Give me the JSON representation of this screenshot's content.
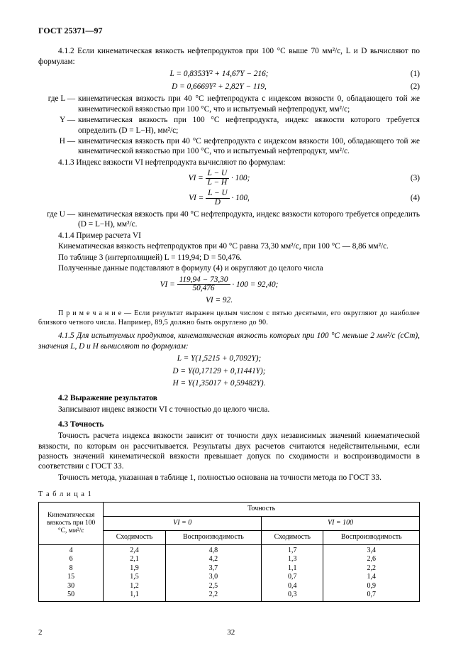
{
  "header": "ГОСТ 25371—97",
  "p412": "4.1.2 Если кинематическая вязкость нефтепродуктов при 100 °С выше 70 мм²/с, L и D вычисляют по формулам:",
  "eq1": "L = 0,8353Y² + 14,67Y − 216;",
  "eq1n": "(1)",
  "eq2": "D = 0,6669Y² + 2,82Y − 119,",
  "eq2n": "(2)",
  "defL_lab": "где L —",
  "defL": "кинематическая вязкость при 40 °С нефтепродукта с индексом вязкости 0, обладающего той же кинематической вязкостью при 100 °С, что и испытуемый нефтепродукт, мм²/с;",
  "defY_lab": "Y —",
  "defY": "кинематическая вязкость при 100 °С нефтепродукта, индекс вязкости которого требуется определить (D = L−H), мм²/с;",
  "defH_lab": "H —",
  "defH": "кинематическая вязкость при 40 °С нефтепродукта с индексом вязкости 100, обладающего той же кинематической вязкостью при 100 °С, что и испытуемый нефтепродукт, мм²/с.",
  "p413": "4.1.3 Индекс вязкости VI нефтепродукта вычисляют по формулам:",
  "eq3_top": "L − U",
  "eq3_bot": "L − H",
  "eq3_pre": "VI =",
  "eq3_post": " · 100;",
  "eq3n": "(3)",
  "eq4_top": "L − U",
  "eq4_bot": "D",
  "eq4_pre": "VI =",
  "eq4_post": " · 100,",
  "eq4n": "(4)",
  "defU_lab": "где U —",
  "defU": "кинематическая вязкость при 40 °С нефтепродукта, индекс вязкости которого требуется определить (D = L−H), мм²/с.",
  "p414a": "4.1.4 Пример расчета VI",
  "p414b": "Кинематическая вязкость нефтепродуктов при 40 °С равна 73,30 мм²/с, при 100 °С — 8,86 мм²/с.",
  "p414c": "По таблице 3 (интерполяцией) L = 119,94; D = 50,476.",
  "p414d": "Полученные данные подставляют в формулу (4) и округляют до целого числа",
  "eqex_pre": "VI =",
  "eqex_top": "119,94 − 73,30",
  "eqex_bot": "50,476",
  "eqex_post": " · 100 = 92,40;",
  "eqex2": "VI = 92.",
  "note": "П р и м е ч а н и е — Если результат выражен целым числом с пятью десятыми, его округляют до наиболее близкого четного числа. Например, 89,5 должно быть округлено до 90.",
  "p415": "4.1.5 Для испытуемых продуктов, кинематическая вязкость которых при 100 °С меньше 2 мм²/с (сСт), значения L, D и H вычисляют по формулам:",
  "eqL2": "L = Y(1,5215 + 0,7092Y);",
  "eqD2": "D = Y(0,17129 + 0,11441Y);",
  "eqH2": "H = Y(1,35017 + 0,59482Y).",
  "s42": "4.2 Выражение результатов",
  "p42": "Записывают индекс вязкости VI с точностью до целого числа.",
  "s43": "4.3 Точность",
  "p43a": "Точность расчета индекса вязкости зависит от точности двух независимых значений кинематической вязкости, по которым он рассчитывается. Результаты двух расчетов считаются недействительными, если разность значений кинематической вязкости превышает допуск по сходимости и воспроизводимости в соответствии с ГОСТ 33.",
  "p43b": "Точность метода, указанная в таблице 1, полностью основана на точности метода по ГОСТ 33.",
  "table_label": "Т а б л и ц а 1",
  "th_kin": "Кинематическая вязкость при 100 °С, мм²/с",
  "th_acc": "Точность",
  "th_vi0": "VI = 0",
  "th_vi100": "VI = 100",
  "th_sh": "Сходимость",
  "th_vo": "Воспроизводимость",
  "rows": [
    [
      "4",
      "2,4",
      "4,8",
      "1,7",
      "3,4"
    ],
    [
      "6",
      "2,1",
      "4,2",
      "1,3",
      "2,6"
    ],
    [
      "8",
      "1,9",
      "3,7",
      "1,1",
      "2,2"
    ],
    [
      "15",
      "1,5",
      "3,0",
      "0,7",
      "1,4"
    ],
    [
      "30",
      "1,2",
      "2,5",
      "0,4",
      "0,9"
    ],
    [
      "50",
      "1,1",
      "2,2",
      "0,3",
      "0,7"
    ]
  ],
  "page_left": "2",
  "page_center": "32"
}
